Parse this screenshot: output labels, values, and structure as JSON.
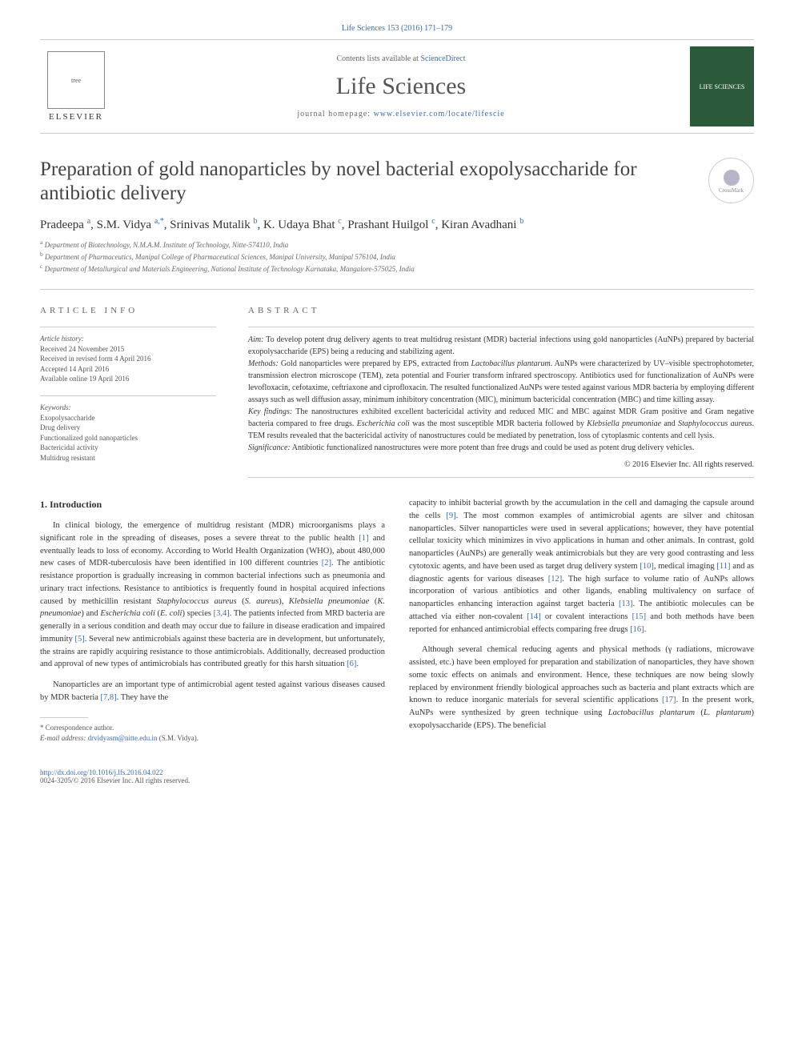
{
  "header": {
    "citation": "Life Sciences 153 (2016) 171–179",
    "contents_line_prefix": "Contents lists available at ",
    "contents_link": "ScienceDirect",
    "journal_name": "Life Sciences",
    "homepage_prefix": "journal homepage: ",
    "homepage_link": "www.elsevier.com/locate/lifescie",
    "elsevier_label": "ELSEVIER",
    "right_logo_text": "LIFE SCIENCES"
  },
  "crossmark": "CrossMark",
  "title": "Preparation of gold nanoparticles by novel bacterial exopolysaccharide for antibiotic delivery",
  "authors_html": "Pradeepa <sup>a</sup>, S.M. Vidya <sup>a,*</sup>, Srinivas Mutalik <sup>b</sup>, K. Udaya Bhat <sup>c</sup>, Prashant Huilgol <sup>c</sup>, Kiran Avadhani <sup>b</sup>",
  "affiliations": {
    "a": "Department of Biotechnology, N.M.A.M. Institute of Technology, Nitte-574110, India",
    "b": "Department of Pharmaceutics, Manipal College of Pharmaceutical Sciences, Manipal University, Manipal 576104, India",
    "c": "Department of Metallurgical and Materials Engineering, National Institute of Technology Karnataka, Mangalore-575025, India"
  },
  "info": {
    "label": "article info",
    "history_title": "Article history:",
    "history_lines": [
      "Received 24 November 2015",
      "Received in revised form 4 April 2016",
      "Accepted 14 April 2016",
      "Available online 19 April 2016"
    ],
    "keywords_title": "Keywords:",
    "keywords": [
      "Exopolysaccharide",
      "Drug delivery",
      "Functionalized gold nanoparticles",
      "Bactericidal activity",
      "Multidrug resistant"
    ]
  },
  "abstract": {
    "label": "abstract",
    "aim_label": "Aim:",
    "aim": "To develop potent drug delivery agents to treat multidrug resistant (MDR) bacterial infections using gold nanoparticles (AuNPs) prepared by bacterial exopolysaccharide (EPS) being a reducing and stabilizing agent.",
    "methods_label": "Methods:",
    "methods": "Gold nanoparticles were prepared by EPS, extracted from Lactobacillus plantarum. AuNPs were characterized by UV–visible spectrophotometer, transmission electron microscope (TEM), zeta potential and Fourier transform infrared spectroscopy. Antibiotics used for functionalization of AuNPs were levofloxacin, cefotaxime, ceftriaxone and ciprofloxacin. The resulted functionalized AuNPs were tested against various MDR bacteria by employing different assays such as well diffusion assay, minimum inhibitory concentration (MIC), minimum bactericidal concentration (MBC) and time killing assay.",
    "key_label": "Key findings:",
    "key": "The nanostructures exhibited excellent bactericidal activity and reduced MIC and MBC against MDR Gram positive and Gram negative bacteria compared to free drugs. Escherichia coli was the most susceptible MDR bacteria followed by Klebsiella pneumoniae and Staphylococcus aureus. TEM results revealed that the bactericidal activity of nanostructures could be mediated by penetration, loss of cytoplasmic contents and cell lysis.",
    "sig_label": "Significance:",
    "sig": "Antibiotic functionalized nanostructures were more potent than free drugs and could be used as potent drug delivery vehicles.",
    "copyright": "© 2016 Elsevier Inc. All rights reserved."
  },
  "section1": {
    "heading": "1. Introduction",
    "p1": "In clinical biology, the emergence of multidrug resistant (MDR) microorganisms plays a significant role in the spreading of diseases, poses a severe threat to the public health [1] and eventually leads to loss of economy. According to World Health Organization (WHO), about 480,000 new cases of MDR-tuberculosis have been identified in 100 different countries [2]. The antibiotic resistance proportion is gradually increasing in common bacterial infections such as pneumonia and urinary tract infections. Resistance to antibiotics is frequently found in hospital acquired infections caused by methicillin resistant Staphylococcus aureus (S. aureus), Klebsiella pneumoniae (K. pneumoniae) and Escherichia coli (E. coli) species [3,4]. The patients infected from MRD bacteria are generally in a serious condition and death may occur due to failure in disease eradication and impaired immunity [5]. Several new antimicrobials against these bacteria are in development, but unfortunately, the strains are rapidly acquiring resistance to those antimicrobials. Additionally, decreased production and approval of new types of antimicrobials has contributed greatly for this harsh situation [6].",
    "p2": "Nanoparticles are an important type of antimicrobial agent tested against various diseases caused by MDR bacteria [7,8]. They have the",
    "p3": "capacity to inhibit bacterial growth by the accumulation in the cell and damaging the capsule around the cells [9]. The most common examples of antimicrobial agents are silver and chitosan nanoparticles. Silver nanoparticles were used in several applications; however, they have potential cellular toxicity which minimizes in vivo applications in human and other animals. In contrast, gold nanoparticles (AuNPs) are generally weak antimicrobials but they are very good contrasting and less cytotoxic agents, and have been used as target drug delivery system [10], medical imaging [11] and as diagnostic agents for various diseases [12]. The high surface to volume ratio of AuNPs allows incorporation of various antibiotics and other ligands, enabling multivalency on surface of nanoparticles enhancing interaction against target bacteria [13]. The antibiotic molecules can be attached via either non-covalent [14] or covalent interactions [15] and both methods have been reported for enhanced antimicrobial effects comparing free drugs [16].",
    "p4": "Although several chemical reducing agents and physical methods (γ radiations, microwave assisted, etc.) have been employed for preparation and stabilization of nanoparticles, they have shown some toxic effects on animals and environment. Hence, these techniques are now being slowly replaced by environment friendly biological approaches such as bacteria and plant extracts which are known to reduce inorganic materials for several scientific applications [17]. In the present work, AuNPs were synthesized by green technique using Lactobacillus plantarum (L. plantarum) exopolysaccharide (EPS). The beneficial"
  },
  "footnote": {
    "corr": "* Correspondence author.",
    "email_label": "E-mail address:",
    "email": "drvidyasm@nitte.edu.in",
    "email_name": "(S.M. Vidya)."
  },
  "footer": {
    "doi": "http://dx.doi.org/10.1016/j.lfs.2016.04.022",
    "issn": "0024-3205/© 2016 Elsevier Inc. All rights reserved."
  },
  "ref_color": "#3a6ba8"
}
